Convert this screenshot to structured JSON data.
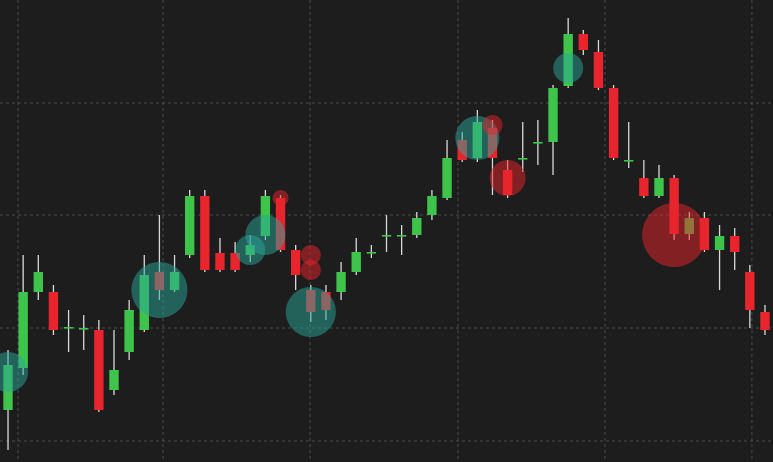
{
  "chart_data": {
    "type": "candlestick",
    "x": [
      0,
      1,
      2,
      3,
      4,
      5,
      6,
      7,
      8,
      9,
      10,
      11,
      12,
      13,
      14,
      15,
      16,
      17,
      18,
      19,
      20,
      21,
      22,
      23,
      24,
      25,
      26,
      27,
      28,
      29,
      30,
      31,
      32,
      33,
      34,
      35,
      36,
      37,
      38,
      39,
      40,
      41,
      42,
      43,
      44,
      45,
      46,
      47,
      48,
      49,
      50
    ],
    "open": [
      52,
      94,
      170,
      170,
      134,
      134,
      132,
      72,
      110,
      132,
      190,
      172,
      207,
      266,
      209,
      209,
      207,
      226,
      264,
      212,
      172,
      170,
      170,
      190,
      210,
      227,
      227,
      227,
      247,
      264,
      322,
      304,
      334,
      292,
      304,
      320,
      320,
      376,
      428,
      410,
      374,
      302,
      284,
      266,
      284,
      228,
      244,
      212,
      226,
      190,
      150
    ],
    "high": [
      112,
      207,
      207,
      177,
      152,
      147,
      142,
      132,
      162,
      207,
      247,
      207,
      272,
      272,
      224,
      220,
      227,
      272,
      267,
      217,
      177,
      177,
      200,
      224,
      217,
      247,
      237,
      250,
      272,
      322,
      330,
      352,
      342,
      302,
      340,
      342,
      377,
      444,
      432,
      422,
      377,
      340,
      302,
      297,
      287,
      250,
      250,
      237,
      234,
      197,
      157
    ],
    "low": [
      12,
      87,
      162,
      127,
      110,
      112,
      50,
      67,
      102,
      130,
      162,
      170,
      204,
      190,
      190,
      190,
      200,
      222,
      210,
      172,
      140,
      142,
      162,
      187,
      204,
      210,
      207,
      224,
      242,
      262,
      300,
      300,
      267,
      264,
      290,
      297,
      287,
      374,
      407,
      372,
      302,
      294,
      264,
      264,
      222,
      222,
      210,
      172,
      192,
      134,
      127
    ],
    "close": [
      97,
      170,
      190,
      132,
      135,
      134,
      52,
      92,
      152,
      187,
      172,
      190,
      266,
      192,
      192,
      192,
      217,
      266,
      212,
      187,
      150,
      152,
      190,
      210,
      210,
      227,
      227,
      244,
      266,
      304,
      302,
      340,
      304,
      267,
      304,
      320,
      374,
      428,
      412,
      374,
      304,
      302,
      266,
      284,
      228,
      244,
      212,
      226,
      210,
      152,
      132
    ],
    "up_color": "#3ec44a",
    "down_color": "#e8242c",
    "xlim": [
      -0.53,
      50.53
    ],
    "xticks": [
      0.66,
      10.24,
      19.95,
      29.72,
      39.43,
      49.14
    ],
    "ylim": [
      0,
      462
    ],
    "yticks": [
      21,
      134,
      247,
      359
    ],
    "grid": true,
    "highlights": {
      "x": [
        0,
        10,
        16,
        17,
        18,
        20,
        20,
        20,
        31,
        32,
        33,
        37,
        44
      ],
      "y": [
        90,
        172,
        212,
        227,
        264,
        207,
        192,
        150,
        324,
        337,
        284,
        394,
        227
      ],
      "size": [
        20,
        28,
        15,
        20,
        8,
        10,
        10,
        25,
        22,
        10,
        18,
        15,
        32
      ],
      "color": [
        "#2aa59a",
        "#2aa59a",
        "#2aa59a",
        "#2aa59a",
        "#e8242c",
        "#e8242c",
        "#e8242c",
        "#2aa59a",
        "#2aa59a",
        "#e8242c",
        "#e8242c",
        "#2aa59a",
        "#e8242c"
      ]
    }
  }
}
